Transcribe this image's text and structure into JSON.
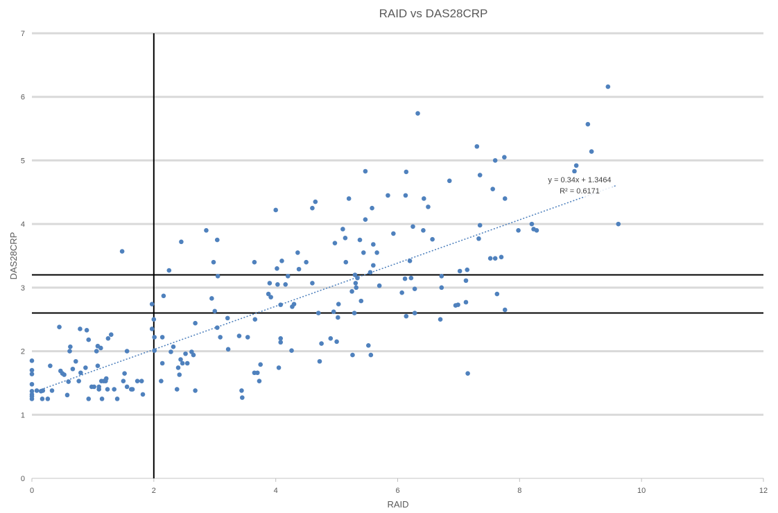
{
  "chart_data": {
    "type": "scatter",
    "title": "RAID vs DAS28CRP",
    "xlabel": "RAID",
    "ylabel": "DAS28CRP",
    "xlim": [
      0,
      12
    ],
    "ylim": [
      0,
      7
    ],
    "x_ticks": [
      "0",
      "2",
      "4",
      "6",
      "8",
      "10",
      "12"
    ],
    "y_ticks": [
      "0",
      "1",
      "2",
      "3",
      "4",
      "5",
      "6",
      "7"
    ],
    "grid": true,
    "legend": "none",
    "marker_color": "#4F81BD",
    "trendline": {
      "type": "linear",
      "slope": 0.34,
      "intercept": 1.3464,
      "x_range": [
        0,
        9.6
      ],
      "style": "dotted",
      "equation": "y = 0.34x + 1.3464",
      "r2": "R² = 0.6171"
    },
    "reference_lines": {
      "vertical_x": [
        2
      ],
      "horizontal_y": [
        3.2,
        2.6
      ],
      "color": "#000000"
    },
    "points": [
      [
        0.0,
        1.85
      ],
      [
        0.0,
        1.7
      ],
      [
        0.0,
        1.64
      ],
      [
        0.0,
        1.48
      ],
      [
        0.0,
        1.37
      ],
      [
        0.0,
        1.32
      ],
      [
        0.0,
        1.29
      ],
      [
        0.0,
        1.25
      ],
      [
        0.08,
        1.38
      ],
      [
        0.15,
        1.37
      ],
      [
        0.17,
        1.25
      ],
      [
        0.18,
        1.38
      ],
      [
        0.26,
        1.25
      ],
      [
        0.3,
        1.77
      ],
      [
        0.33,
        1.38
      ],
      [
        0.45,
        2.38
      ],
      [
        0.47,
        1.69
      ],
      [
        0.5,
        1.65
      ],
      [
        0.53,
        1.63
      ],
      [
        0.58,
        1.31
      ],
      [
        0.6,
        1.52
      ],
      [
        0.62,
        2.0
      ],
      [
        0.63,
        2.07
      ],
      [
        0.67,
        1.72
      ],
      [
        0.72,
        1.84
      ],
      [
        0.77,
        1.53
      ],
      [
        0.79,
        2.35
      ],
      [
        0.8,
        1.66
      ],
      [
        0.88,
        1.74
      ],
      [
        0.9,
        2.33
      ],
      [
        0.93,
        2.18
      ],
      [
        0.93,
        1.25
      ],
      [
        0.98,
        1.44
      ],
      [
        1.02,
        1.44
      ],
      [
        1.06,
        2.0
      ],
      [
        1.08,
        2.08
      ],
      [
        1.08,
        1.77
      ],
      [
        1.1,
        1.4
      ],
      [
        1.1,
        1.44
      ],
      [
        1.13,
        2.05
      ],
      [
        1.14,
        1.53
      ],
      [
        1.15,
        1.25
      ],
      [
        1.18,
        1.53
      ],
      [
        1.21,
        1.53
      ],
      [
        1.22,
        1.57
      ],
      [
        1.24,
        1.4
      ],
      [
        1.25,
        2.2
      ],
      [
        1.3,
        2.26
      ],
      [
        1.35,
        1.4
      ],
      [
        1.4,
        1.25
      ],
      [
        1.48,
        3.57
      ],
      [
        1.5,
        1.53
      ],
      [
        1.52,
        1.65
      ],
      [
        1.56,
        1.44
      ],
      [
        1.56,
        2.0
      ],
      [
        1.63,
        1.4
      ],
      [
        1.65,
        1.4
      ],
      [
        1.73,
        1.53
      ],
      [
        1.8,
        1.53
      ],
      [
        1.82,
        1.32
      ],
      [
        1.97,
        2.74
      ],
      [
        1.97,
        2.35
      ],
      [
        2.0,
        2.5
      ],
      [
        2.01,
        2.22
      ],
      [
        2.01,
        2.01
      ],
      [
        2.12,
        1.53
      ],
      [
        2.14,
        2.22
      ],
      [
        2.14,
        1.81
      ],
      [
        2.16,
        2.87
      ],
      [
        2.25,
        3.27
      ],
      [
        2.28,
        1.99
      ],
      [
        2.32,
        2.07
      ],
      [
        2.38,
        1.4
      ],
      [
        2.4,
        1.74
      ],
      [
        2.42,
        1.63
      ],
      [
        2.44,
        1.87
      ],
      [
        2.45,
        3.72
      ],
      [
        2.47,
        1.81
      ],
      [
        2.52,
        1.96
      ],
      [
        2.55,
        1.81
      ],
      [
        2.62,
        1.99
      ],
      [
        2.65,
        1.94
      ],
      [
        2.68,
        1.38
      ],
      [
        2.68,
        2.44
      ],
      [
        2.86,
        3.9
      ],
      [
        2.95,
        2.83
      ],
      [
        2.98,
        3.4
      ],
      [
        3.0,
        2.63
      ],
      [
        3.04,
        3.75
      ],
      [
        3.05,
        3.18
      ],
      [
        3.04,
        2.37
      ],
      [
        3.09,
        2.22
      ],
      [
        3.21,
        2.52
      ],
      [
        3.22,
        2.03
      ],
      [
        3.4,
        2.24
      ],
      [
        3.44,
        1.38
      ],
      [
        3.45,
        1.27
      ],
      [
        3.54,
        2.22
      ],
      [
        3.65,
        3.4
      ],
      [
        3.65,
        1.66
      ],
      [
        3.66,
        2.5
      ],
      [
        3.7,
        1.66
      ],
      [
        3.73,
        1.53
      ],
      [
        3.75,
        1.79
      ],
      [
        3.88,
        2.9
      ],
      [
        3.9,
        3.07
      ],
      [
        3.92,
        2.85
      ],
      [
        4.0,
        4.22
      ],
      [
        4.02,
        3.3
      ],
      [
        4.03,
        3.05
      ],
      [
        4.05,
        1.74
      ],
      [
        4.08,
        2.2
      ],
      [
        4.08,
        2.14
      ],
      [
        4.08,
        2.73
      ],
      [
        4.1,
        3.42
      ],
      [
        4.16,
        3.05
      ],
      [
        4.2,
        3.18
      ],
      [
        4.26,
        2.01
      ],
      [
        4.27,
        2.7
      ],
      [
        4.3,
        2.74
      ],
      [
        4.36,
        3.55
      ],
      [
        4.38,
        3.29
      ],
      [
        4.5,
        3.4
      ],
      [
        4.6,
        4.25
      ],
      [
        4.6,
        3.07
      ],
      [
        4.65,
        4.35
      ],
      [
        4.7,
        2.6
      ],
      [
        4.72,
        1.84
      ],
      [
        4.75,
        2.12
      ],
      [
        4.9,
        2.2
      ],
      [
        4.95,
        2.62
      ],
      [
        4.97,
        3.7
      ],
      [
        5.0,
        2.15
      ],
      [
        5.02,
        2.53
      ],
      [
        5.03,
        2.74
      ],
      [
        5.1,
        3.92
      ],
      [
        5.14,
        3.78
      ],
      [
        5.15,
        3.4
      ],
      [
        5.2,
        4.4
      ],
      [
        5.25,
        2.94
      ],
      [
        5.26,
        1.94
      ],
      [
        5.29,
        2.6
      ],
      [
        5.3,
        3.2
      ],
      [
        5.31,
        3.07
      ],
      [
        5.32,
        3.0
      ],
      [
        5.34,
        3.15
      ],
      [
        5.38,
        3.75
      ],
      [
        5.4,
        2.79
      ],
      [
        5.44,
        3.55
      ],
      [
        5.47,
        4.83
      ],
      [
        5.47,
        4.07
      ],
      [
        5.52,
        2.09
      ],
      [
        5.55,
        3.24
      ],
      [
        5.56,
        1.94
      ],
      [
        5.58,
        4.25
      ],
      [
        5.6,
        3.68
      ],
      [
        5.6,
        3.35
      ],
      [
        5.66,
        3.55
      ],
      [
        5.7,
        3.03
      ],
      [
        5.84,
        4.45
      ],
      [
        5.93,
        3.85
      ],
      [
        6.07,
        2.92
      ],
      [
        6.12,
        3.14
      ],
      [
        6.13,
        4.45
      ],
      [
        6.14,
        2.55
      ],
      [
        6.14,
        4.82
      ],
      [
        6.2,
        3.42
      ],
      [
        6.22,
        3.15
      ],
      [
        6.25,
        3.96
      ],
      [
        6.28,
        2.98
      ],
      [
        6.28,
        2.6
      ],
      [
        6.33,
        5.74
      ],
      [
        6.42,
        3.9
      ],
      [
        6.43,
        4.4
      ],
      [
        6.5,
        4.27
      ],
      [
        6.57,
        3.76
      ],
      [
        6.7,
        2.5
      ],
      [
        6.72,
        3.18
      ],
      [
        6.72,
        3.0
      ],
      [
        6.85,
        4.68
      ],
      [
        6.95,
        2.72
      ],
      [
        6.99,
        2.73
      ],
      [
        7.02,
        3.26
      ],
      [
        7.12,
        2.77
      ],
      [
        7.12,
        3.11
      ],
      [
        7.14,
        3.28
      ],
      [
        7.15,
        1.65
      ],
      [
        7.3,
        5.22
      ],
      [
        7.33,
        3.77
      ],
      [
        7.35,
        3.98
      ],
      [
        7.35,
        4.77
      ],
      [
        7.52,
        3.46
      ],
      [
        7.56,
        4.55
      ],
      [
        7.6,
        3.46
      ],
      [
        7.6,
        5.0
      ],
      [
        7.63,
        2.9
      ],
      [
        7.7,
        3.48
      ],
      [
        7.75,
        5.05
      ],
      [
        7.76,
        4.4
      ],
      [
        7.76,
        2.65
      ],
      [
        7.98,
        3.9
      ],
      [
        8.2,
        4.0
      ],
      [
        8.23,
        3.92
      ],
      [
        8.28,
        3.9
      ],
      [
        8.9,
        4.83
      ],
      [
        8.93,
        4.92
      ],
      [
        9.12,
        5.57
      ],
      [
        9.18,
        5.14
      ],
      [
        9.45,
        6.16
      ],
      [
        9.62,
        4.0
      ]
    ]
  }
}
